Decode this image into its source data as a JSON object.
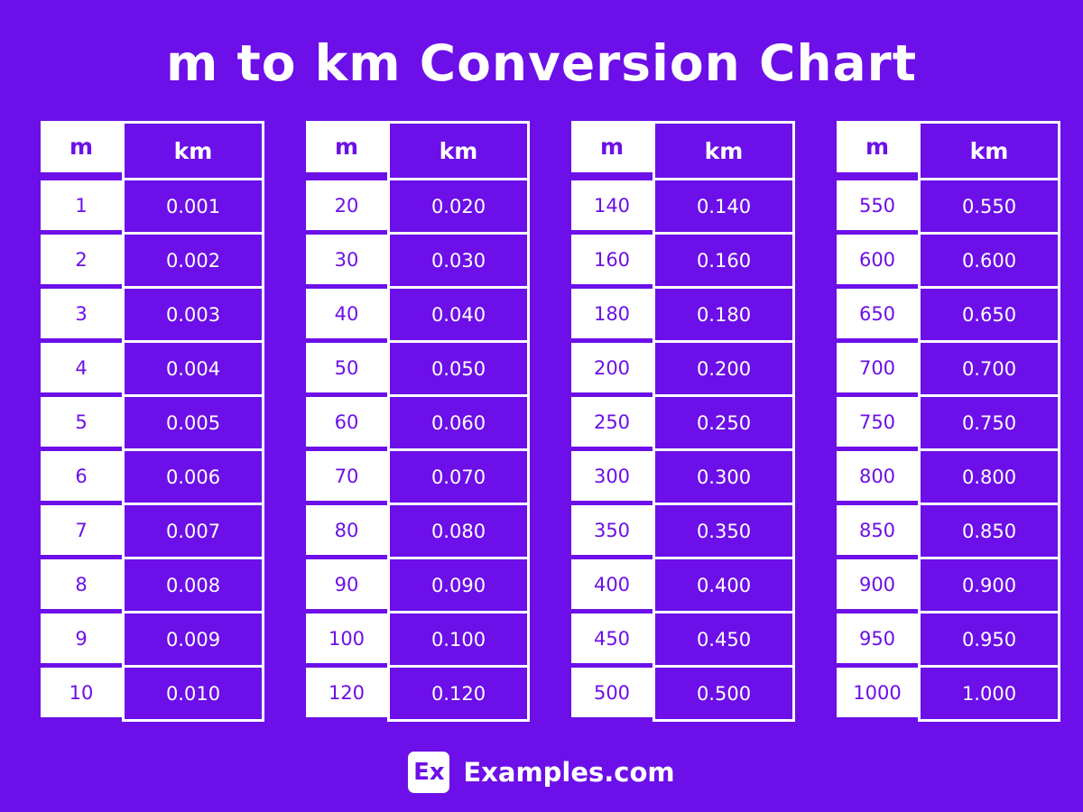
{
  "page": {
    "background_color": "#6C0FE8",
    "text_color": "#FFFFFF"
  },
  "chart_data": {
    "type": "table",
    "title": "m to km Conversion Chart",
    "columns": [
      "m",
      "km"
    ],
    "tables": [
      {
        "headers": [
          "m",
          "km"
        ],
        "rows": [
          [
            "1",
            "0.001"
          ],
          [
            "2",
            "0.002"
          ],
          [
            "3",
            "0.003"
          ],
          [
            "4",
            "0.004"
          ],
          [
            "5",
            "0.005"
          ],
          [
            "6",
            "0.006"
          ],
          [
            "7",
            "0.007"
          ],
          [
            "8",
            "0.008"
          ],
          [
            "9",
            "0.009"
          ],
          [
            "10",
            "0.010"
          ]
        ]
      },
      {
        "headers": [
          "m",
          "km"
        ],
        "rows": [
          [
            "20",
            "0.020"
          ],
          [
            "30",
            "0.030"
          ],
          [
            "40",
            "0.040"
          ],
          [
            "50",
            "0.050"
          ],
          [
            "60",
            "0.060"
          ],
          [
            "70",
            "0.070"
          ],
          [
            "80",
            "0.080"
          ],
          [
            "90",
            "0.090"
          ],
          [
            "100",
            "0.100"
          ],
          [
            "120",
            "0.120"
          ]
        ]
      },
      {
        "headers": [
          "m",
          "km"
        ],
        "rows": [
          [
            "140",
            "0.140"
          ],
          [
            "160",
            "0.160"
          ],
          [
            "180",
            "0.180"
          ],
          [
            "200",
            "0.200"
          ],
          [
            "250",
            "0.250"
          ],
          [
            "300",
            "0.300"
          ],
          [
            "350",
            "0.350"
          ],
          [
            "400",
            "0.400"
          ],
          [
            "450",
            "0.450"
          ],
          [
            "500",
            "0.500"
          ]
        ]
      },
      {
        "headers": [
          "m",
          "km"
        ],
        "rows": [
          [
            "550",
            "0.550"
          ],
          [
            "600",
            "0.600"
          ],
          [
            "650",
            "0.650"
          ],
          [
            "700",
            "0.700"
          ],
          [
            "750",
            "0.750"
          ],
          [
            "800",
            "0.800"
          ],
          [
            "850",
            "0.850"
          ],
          [
            "900",
            "0.900"
          ],
          [
            "950",
            "0.950"
          ],
          [
            "1000",
            "1.000"
          ]
        ]
      }
    ]
  },
  "footer": {
    "logo_text": "Ex",
    "brand": "Examples.com"
  }
}
